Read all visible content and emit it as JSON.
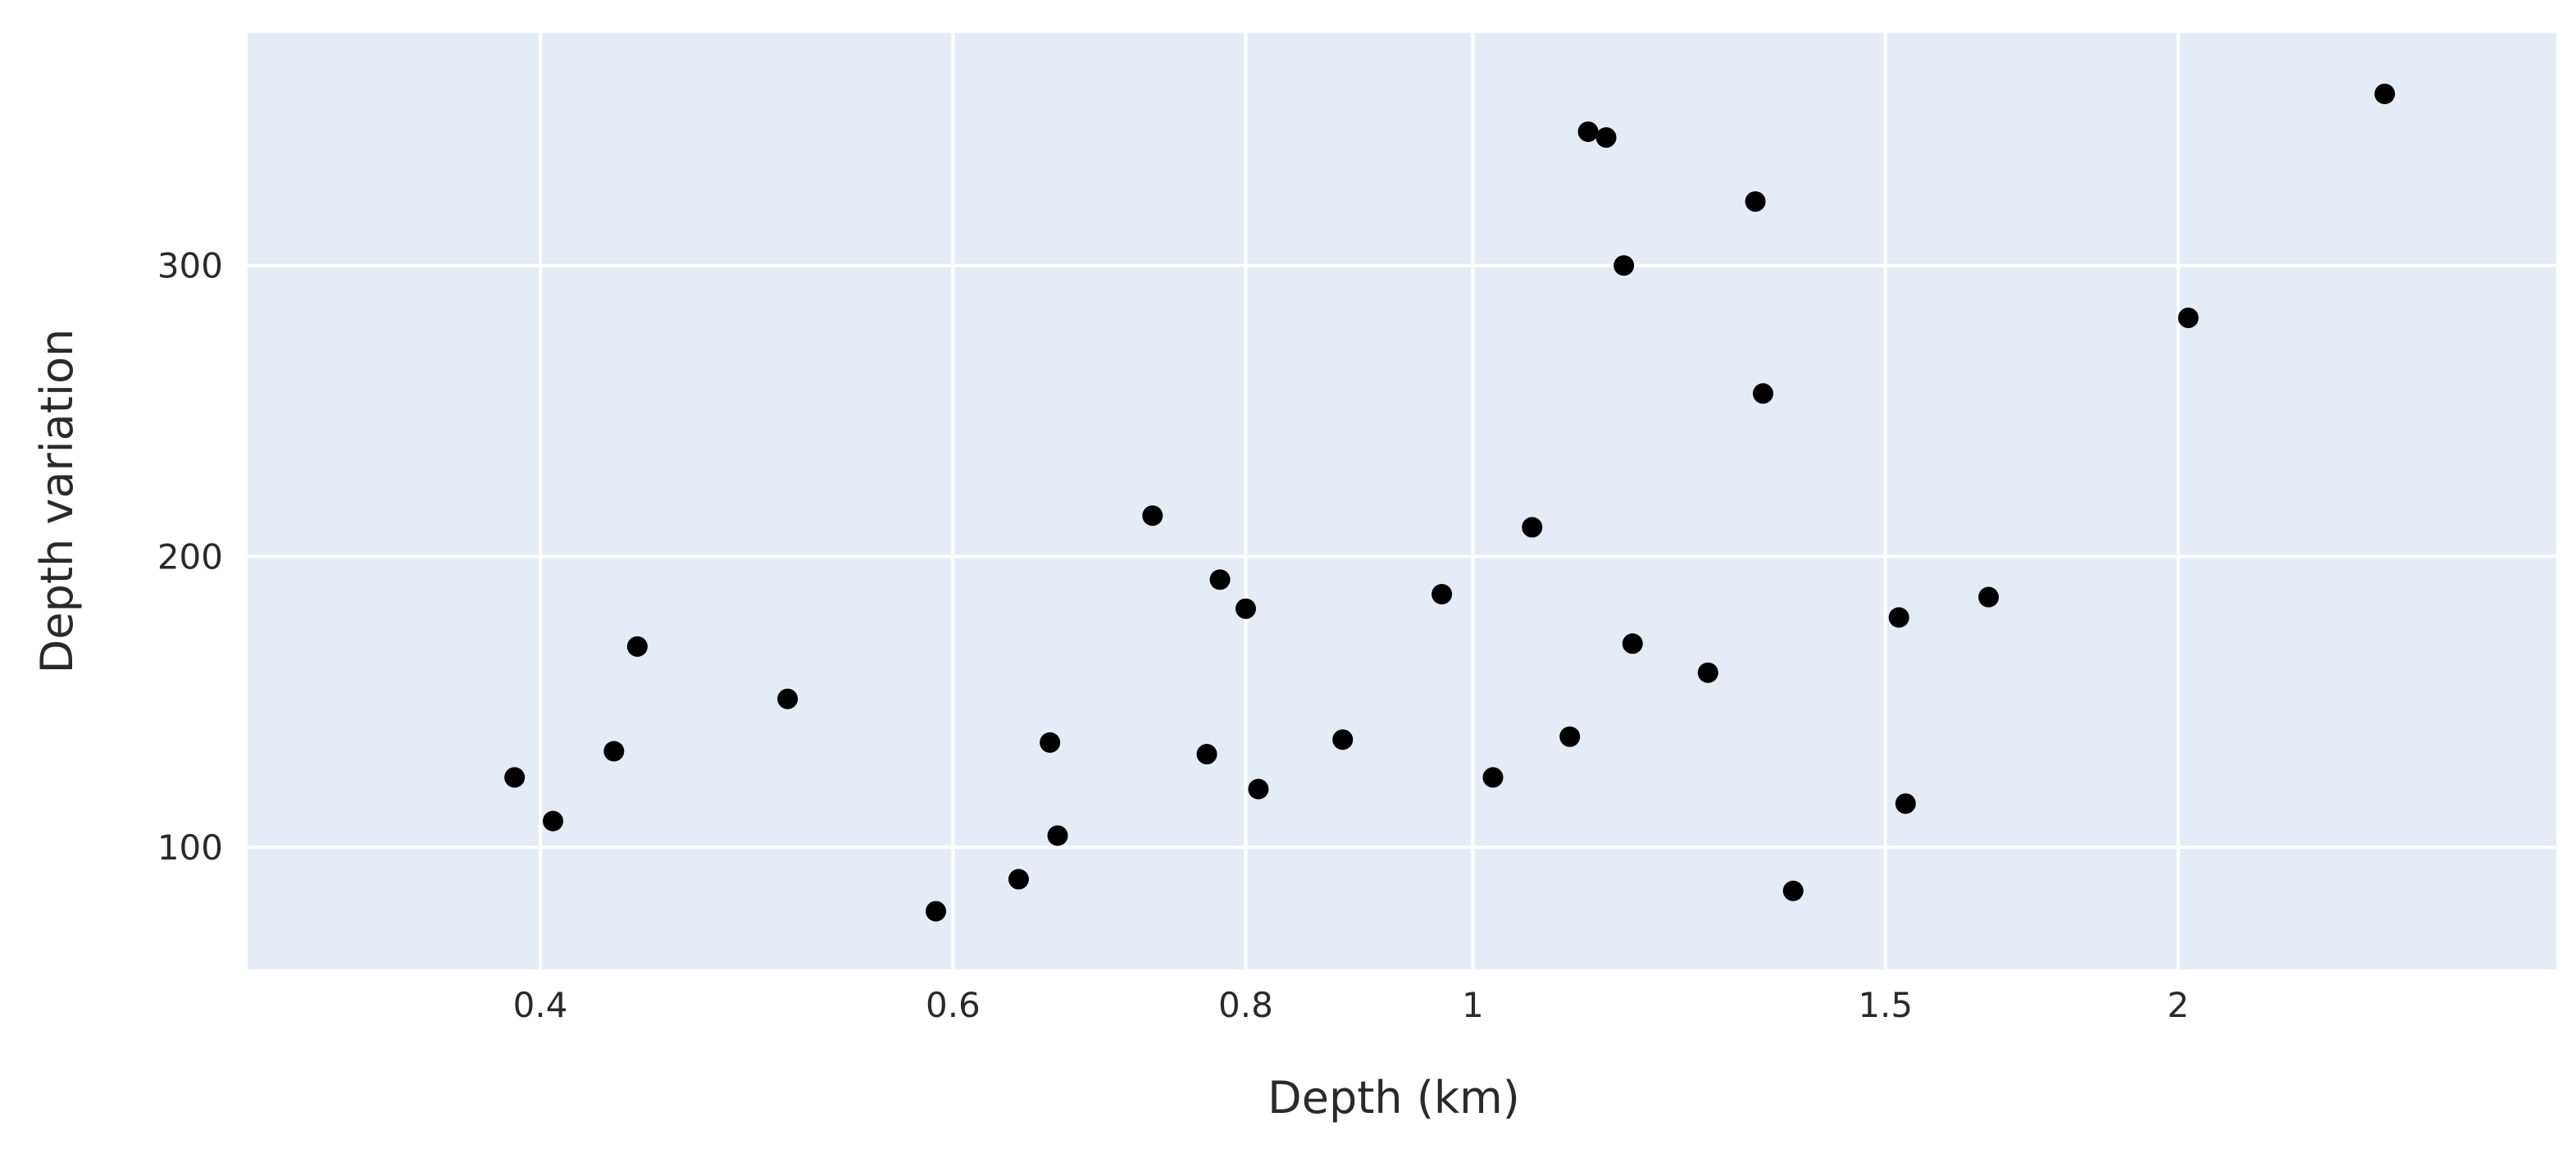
{
  "chart_data": {
    "type": "scatter",
    "xlabel": "Depth (km)",
    "ylabel": "Depth variation",
    "x_scale": "log",
    "xlim": [
      0.3,
      2.9
    ],
    "ylim": [
      58,
      380
    ],
    "xticks": [
      0.4,
      0.6,
      0.8,
      1,
      1.5,
      2
    ],
    "xtick_labels": [
      "0.4",
      "0.6",
      "0.8",
      "1",
      "1.5",
      "2"
    ],
    "yticks": [
      100,
      200,
      300
    ],
    "ytick_labels": [
      "100",
      "200",
      "300"
    ],
    "grid": true,
    "legend": "none",
    "colors": {
      "background": "#e5ecf6",
      "grid": "#ffffff",
      "marker": "#000000"
    },
    "points": [
      {
        "x": 0.39,
        "y": 124
      },
      {
        "x": 0.405,
        "y": 109
      },
      {
        "x": 0.43,
        "y": 133
      },
      {
        "x": 0.44,
        "y": 169
      },
      {
        "x": 0.51,
        "y": 151
      },
      {
        "x": 0.59,
        "y": 78
      },
      {
        "x": 0.64,
        "y": 89
      },
      {
        "x": 0.66,
        "y": 136
      },
      {
        "x": 0.665,
        "y": 104
      },
      {
        "x": 0.73,
        "y": 214
      },
      {
        "x": 0.77,
        "y": 132
      },
      {
        "x": 0.78,
        "y": 192
      },
      {
        "x": 0.8,
        "y": 182
      },
      {
        "x": 0.81,
        "y": 120
      },
      {
        "x": 0.88,
        "y": 137
      },
      {
        "x": 0.97,
        "y": 187
      },
      {
        "x": 1.02,
        "y": 124
      },
      {
        "x": 1.06,
        "y": 210
      },
      {
        "x": 1.1,
        "y": 138
      },
      {
        "x": 1.12,
        "y": 346
      },
      {
        "x": 1.14,
        "y": 344
      },
      {
        "x": 1.16,
        "y": 300
      },
      {
        "x": 1.17,
        "y": 170
      },
      {
        "x": 1.26,
        "y": 160
      },
      {
        "x": 1.32,
        "y": 322
      },
      {
        "x": 1.33,
        "y": 256
      },
      {
        "x": 1.37,
        "y": 85
      },
      {
        "x": 1.52,
        "y": 179
      },
      {
        "x": 1.53,
        "y": 115
      },
      {
        "x": 1.66,
        "y": 186
      },
      {
        "x": 2.02,
        "y": 282
      },
      {
        "x": 2.45,
        "y": 359
      }
    ]
  }
}
